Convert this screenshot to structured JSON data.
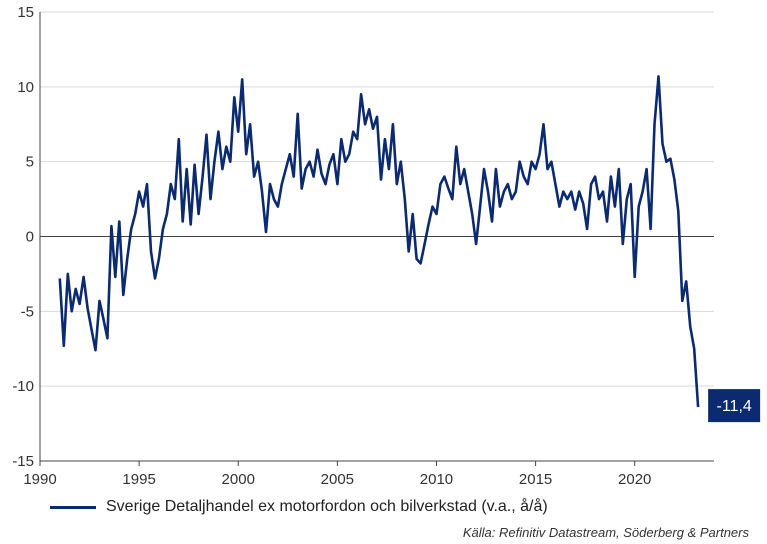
{
  "chart_data": {
    "type": "line",
    "title": "",
    "xlabel": "",
    "ylabel": "",
    "xlim": [
      1990,
      2024
    ],
    "ylim": [
      -15,
      15
    ],
    "x_ticks": [
      "1990",
      "1995",
      "2000",
      "2005",
      "2010",
      "2015",
      "2020"
    ],
    "y_ticks": [
      "15",
      "10",
      "5",
      "0",
      "-5",
      "-10",
      "-15"
    ],
    "grid": "horizontal",
    "legend_position": "bottom-left",
    "series": [
      {
        "name": "Sverige Detaljhandel ex motorfordon och bilverkstad (v.a., å/å)",
        "color": "#0b2a6f",
        "x": [
          1991.0,
          1991.2,
          1991.4,
          1991.6,
          1991.8,
          1992.0,
          1992.2,
          1992.4,
          1992.6,
          1992.8,
          1993.0,
          1993.2,
          1993.4,
          1993.6,
          1993.8,
          1994.0,
          1994.2,
          1994.4,
          1994.6,
          1994.8,
          1995.0,
          1995.2,
          1995.4,
          1995.6,
          1995.8,
          1996.0,
          1996.2,
          1996.4,
          1996.6,
          1996.8,
          1997.0,
          1997.2,
          1997.4,
          1997.6,
          1997.8,
          1998.0,
          1998.2,
          1998.4,
          1998.6,
          1998.8,
          1999.0,
          1999.2,
          1999.4,
          1999.6,
          1999.8,
          2000.0,
          2000.2,
          2000.4,
          2000.6,
          2000.8,
          2001.0,
          2001.2,
          2001.4,
          2001.6,
          2001.8,
          2002.0,
          2002.2,
          2002.4,
          2002.6,
          2002.8,
          2003.0,
          2003.2,
          2003.4,
          2003.6,
          2003.8,
          2004.0,
          2004.2,
          2004.4,
          2004.6,
          2004.8,
          2005.0,
          2005.2,
          2005.4,
          2005.6,
          2005.8,
          2006.0,
          2006.2,
          2006.4,
          2006.6,
          2006.8,
          2007.0,
          2007.2,
          2007.4,
          2007.6,
          2007.8,
          2008.0,
          2008.2,
          2008.4,
          2008.6,
          2008.8,
          2009.0,
          2009.2,
          2009.4,
          2009.6,
          2009.8,
          2010.0,
          2010.2,
          2010.4,
          2010.6,
          2010.8,
          2011.0,
          2011.2,
          2011.4,
          2011.6,
          2011.8,
          2012.0,
          2012.2,
          2012.4,
          2012.6,
          2012.8,
          2013.0,
          2013.2,
          2013.4,
          2013.6,
          2013.8,
          2014.0,
          2014.2,
          2014.4,
          2014.6,
          2014.8,
          2015.0,
          2015.2,
          2015.4,
          2015.6,
          2015.8,
          2016.0,
          2016.2,
          2016.4,
          2016.6,
          2016.8,
          2017.0,
          2017.2,
          2017.4,
          2017.6,
          2017.8,
          2018.0,
          2018.2,
          2018.4,
          2018.6,
          2018.8,
          2019.0,
          2019.2,
          2019.4,
          2019.6,
          2019.8,
          2020.0,
          2020.2,
          2020.4,
          2020.6,
          2020.8,
          2021.0,
          2021.2,
          2021.4,
          2021.6,
          2021.8,
          2022.0,
          2022.2,
          2022.4,
          2022.6,
          2022.8,
          2023.0,
          2023.2
        ],
        "values": [
          -2.8,
          -7.3,
          -2.5,
          -5.0,
          -3.5,
          -4.5,
          -2.7,
          -4.8,
          -6.2,
          -7.6,
          -4.3,
          -5.5,
          -6.8,
          0.7,
          -2.7,
          1.0,
          -3.9,
          -1.5,
          0.5,
          1.5,
          3.0,
          2.0,
          3.5,
          -1.0,
          -2.8,
          -1.5,
          0.5,
          1.5,
          3.5,
          2.5,
          6.5,
          1.0,
          4.5,
          0.8,
          4.8,
          1.5,
          4.0,
          6.8,
          2.5,
          5.0,
          7.0,
          4.5,
          6.0,
          5.0,
          9.3,
          7.0,
          10.5,
          5.5,
          7.5,
          4.0,
          5.0,
          3.0,
          0.3,
          3.5,
          2.5,
          2.0,
          3.5,
          4.5,
          5.5,
          4.0,
          8.2,
          3.2,
          4.5,
          5.0,
          4.0,
          5.8,
          4.2,
          3.5,
          4.8,
          5.5,
          3.5,
          6.5,
          5.0,
          5.5,
          7.0,
          6.5,
          9.5,
          7.5,
          8.5,
          7.2,
          8.0,
          3.8,
          6.5,
          4.5,
          7.5,
          3.5,
          5.0,
          2.5,
          -1.0,
          1.5,
          -1.5,
          -1.8,
          -0.5,
          0.8,
          2.0,
          1.5,
          3.5,
          4.0,
          3.2,
          2.5,
          6.0,
          3.5,
          4.5,
          3.0,
          1.5,
          -0.5,
          2.0,
          4.5,
          3.0,
          1.0,
          4.5,
          2.0,
          3.0,
          3.5,
          2.5,
          3.0,
          5.0,
          4.0,
          3.5,
          5.0,
          4.5,
          5.5,
          7.5,
          4.5,
          5.0,
          3.5,
          2.0,
          3.0,
          2.5,
          3.0,
          1.8,
          3.0,
          2.2,
          0.5,
          3.5,
          4.0,
          2.5,
          3.0,
          1.0,
          4.0,
          2.0,
          4.5,
          -0.5,
          2.5,
          3.5,
          -2.7,
          2.0,
          3.0,
          4.5,
          0.5,
          7.5,
          10.7,
          6.2,
          5.0,
          5.2,
          3.8,
          1.7,
          -4.3,
          -3.0,
          -6.0,
          -7.5,
          -11.4
        ]
      }
    ],
    "annotations": [
      {
        "text": "-11,4",
        "x": 2023.2,
        "y": -11.4
      }
    ]
  },
  "legend": {
    "label": "Sverige Detaljhandel ex motorfordon och bilverkstad (v.a., å/å)"
  },
  "source": "Källa: Refinitiv Datastream, Söderberg & Partners"
}
